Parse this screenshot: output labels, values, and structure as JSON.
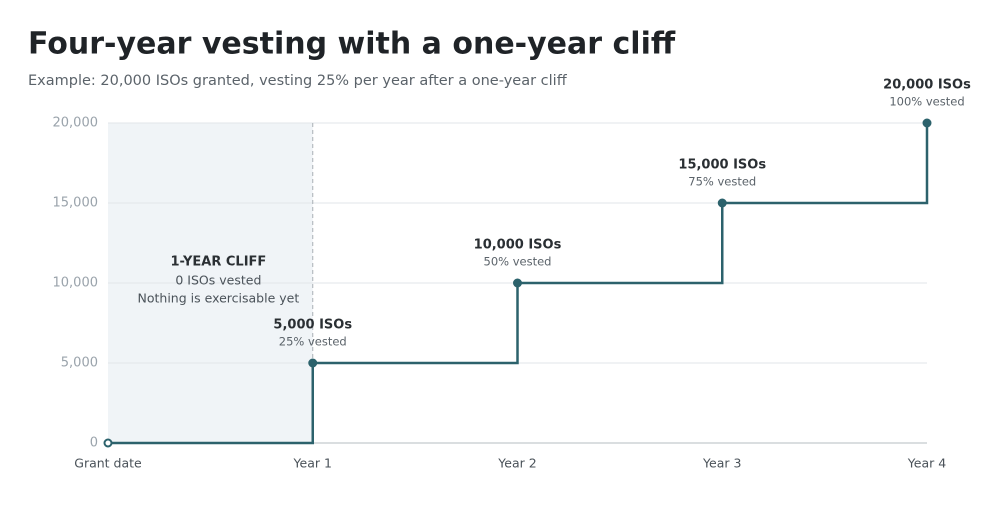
{
  "chart_data": {
    "type": "step",
    "title": "Four-year vesting with a one-year cliff",
    "subtitle": "Example: 20,000 ISOs granted, vesting 25% per year after a one-year cliff",
    "categories": [
      "Grant date",
      "Year 1",
      "Year 2",
      "Year 3",
      "Year 4"
    ],
    "values": [
      0,
      5000,
      10000,
      15000,
      20000
    ],
    "value_labels": [
      null,
      "5,000 ISOs",
      "10,000 ISOs",
      "15,000 ISOs",
      "20,000 ISOs"
    ],
    "value_sublabels": [
      null,
      "25% vested",
      "50% vested",
      "75% vested",
      "100% vested"
    ],
    "color": "#2c626c",
    "ylim": [
      0,
      20000
    ],
    "yticks": [
      0,
      {
        "value": 5000,
        "label": "5,000"
      },
      {
        "value": 10000,
        "label": "10,000"
      },
      {
        "value": 15000,
        "label": "15,000"
      },
      {
        "value": 20000,
        "label": "20,000"
      }
    ],
    "grid": true,
    "annotation": {
      "title": "1-YEAR CLIFF",
      "lines": [
        "0 ISOs vested",
        "Nothing is exercisable yet"
      ]
    }
  }
}
